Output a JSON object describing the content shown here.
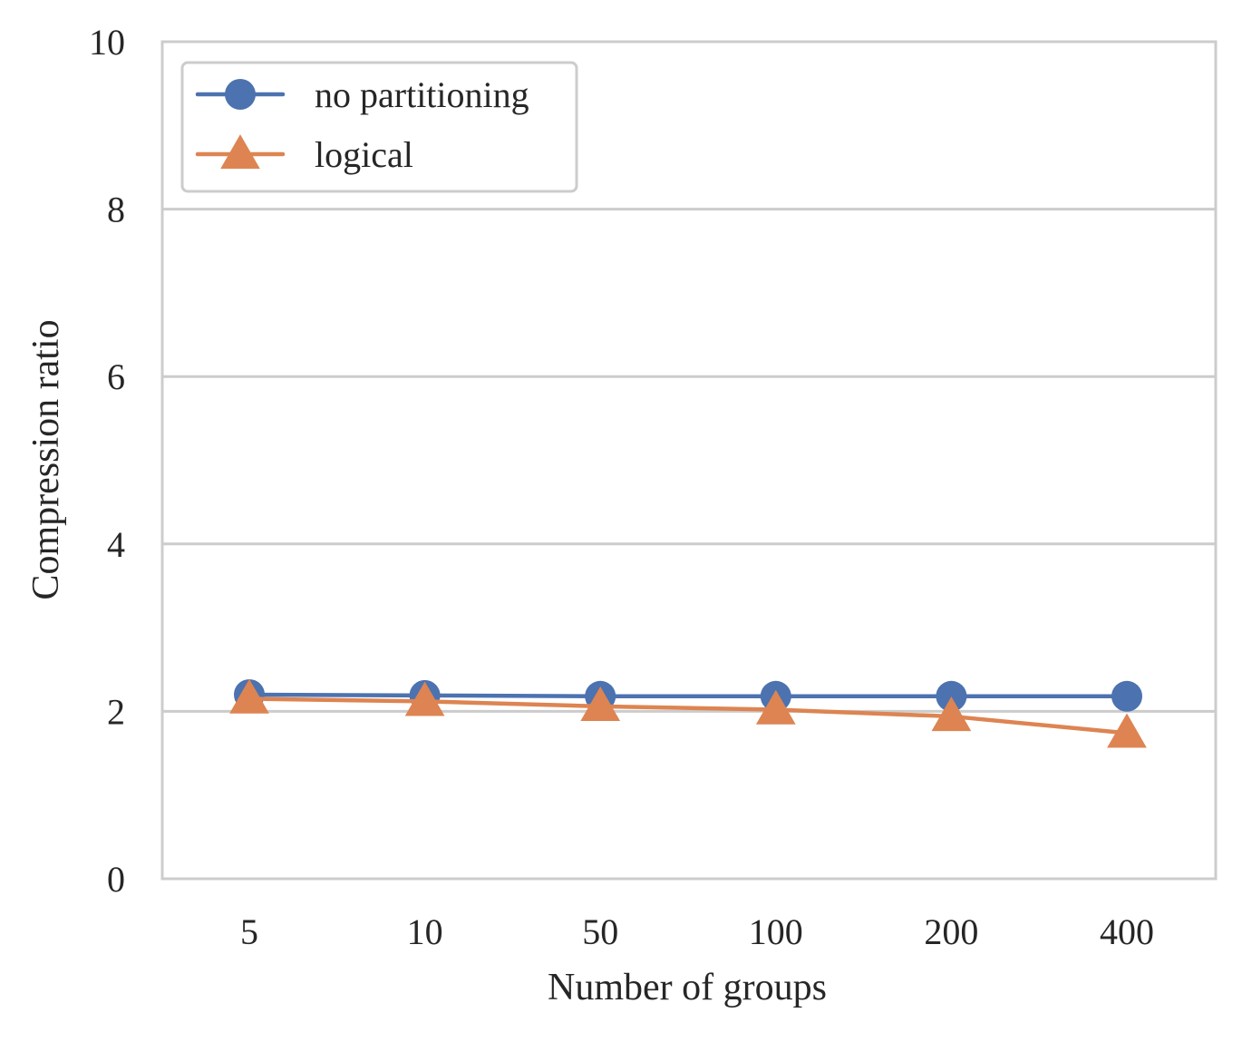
{
  "chart_data": {
    "type": "line",
    "title": "",
    "xlabel": "Number of groups",
    "ylabel": "Compression ratio",
    "categories": [
      "5",
      "10",
      "50",
      "100",
      "200",
      "400"
    ],
    "ylim": [
      0,
      10
    ],
    "yticks": [
      "0",
      "2",
      "4",
      "6",
      "8",
      "10"
    ],
    "grid": "horizontal",
    "legend_position": "top-left",
    "series": [
      {
        "name": "no partitioning",
        "marker": "circle",
        "color": "#4c72b0",
        "values": [
          2.2,
          2.19,
          2.18,
          2.18,
          2.18,
          2.18
        ]
      },
      {
        "name": "logical",
        "marker": "triangle",
        "color": "#dd8452",
        "values": [
          2.15,
          2.12,
          2.06,
          2.02,
          1.94,
          1.74
        ]
      }
    ]
  }
}
